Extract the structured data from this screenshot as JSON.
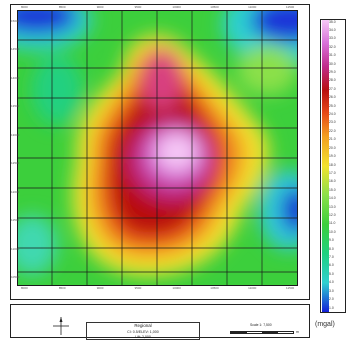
{
  "map": {
    "x_ticks": [
      "8000",
      "8500",
      "9000",
      "9500",
      "10000",
      "10500",
      "11000",
      "11500"
    ],
    "y_ticks": [
      "15000",
      "14500",
      "14000",
      "13500",
      "13000",
      "12500",
      "12000",
      "11500",
      "11000",
      "10500"
    ]
  },
  "legend": {
    "labels": [
      "35.0",
      "34.0",
      "33.0",
      "32.0",
      "31.0",
      "30.0",
      "29.0",
      "28.0",
      "27.0",
      "26.0",
      "25.0",
      "24.0",
      "23.0",
      "22.0",
      "21.0",
      "20.0",
      "19.0",
      "18.0",
      "17.0",
      "16.0",
      "15.0",
      "14.0",
      "13.0",
      "12.0",
      "11.0",
      "10.0",
      "9.0",
      "8.0",
      "7.0",
      "6.0",
      "5.0",
      "4.0",
      "3.0",
      "2.0",
      "1.0"
    ],
    "unit": "(mgal)"
  },
  "title_block": {
    "line1": "Regional",
    "line2": "CI: 0.5/ELEV: 1,000",
    "line3": "Lift: 2,000"
  },
  "scale": {
    "label": "Scale 1: 7,500",
    "units": "m"
  },
  "colors": {
    "high": "#f6c8f6",
    "mid_high": "#c01818",
    "mid": "#f0e030",
    "mid_low": "#30d030",
    "low": "#1420d8"
  }
}
